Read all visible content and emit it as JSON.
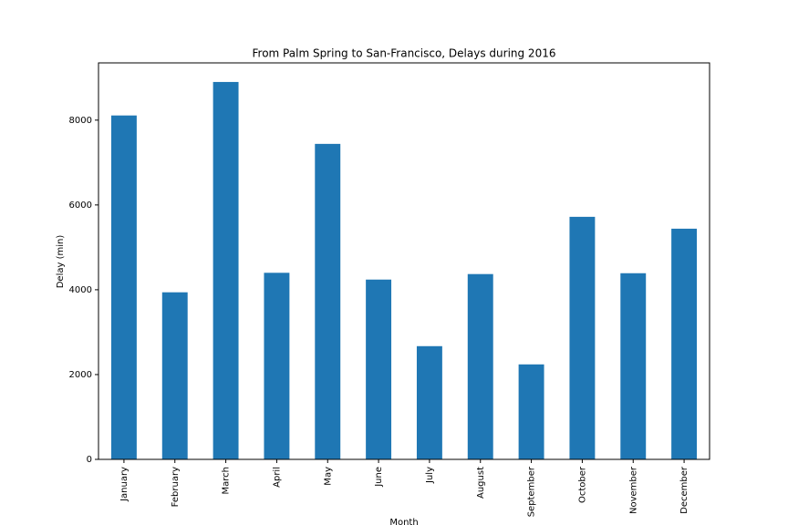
{
  "chart_data": {
    "type": "bar",
    "title": "From Palm Spring to San-Francisco, Delays during 2016",
    "x_label": "Month",
    "y_label": "Delay (min)",
    "categories": [
      "January",
      "February",
      "March",
      "April",
      "May",
      "June",
      "July",
      "August",
      "September",
      "October",
      "November",
      "December"
    ],
    "values": [
      8110,
      3940,
      8900,
      4400,
      7440,
      4240,
      2670,
      4370,
      2240,
      5720,
      4390,
      5440
    ],
    "color": "#1f77b4",
    "ylim": [
      0,
      9350
    ],
    "yticks": [
      0,
      2000,
      4000,
      6000,
      8000
    ],
    "grid": false
  }
}
